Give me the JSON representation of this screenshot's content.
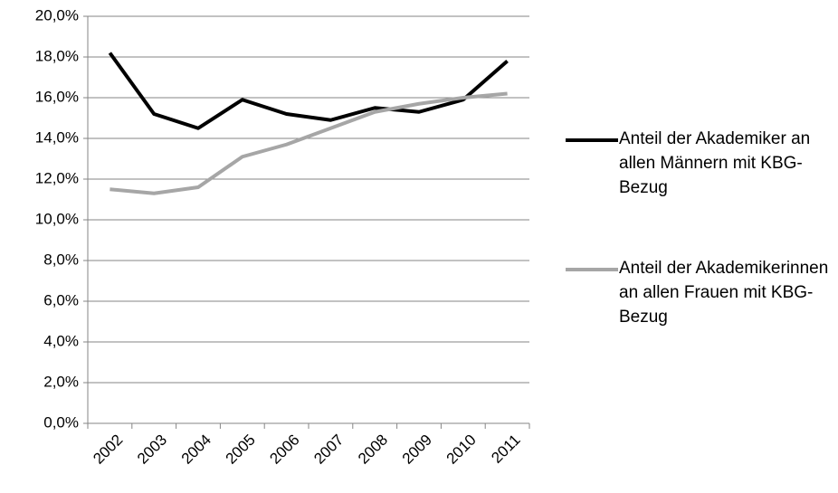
{
  "chart_data": {
    "type": "line",
    "categories": [
      "2002",
      "2003",
      "2004",
      "2005",
      "2006",
      "2007",
      "2008",
      "2009",
      "2010",
      "2011"
    ],
    "series": [
      {
        "name": "Anteil der Akademiker an allen Männern mit KBG-Bezug",
        "color": "#000000",
        "values": [
          18.2,
          15.2,
          14.5,
          15.9,
          15.2,
          14.9,
          15.5,
          15.3,
          15.9,
          17.8
        ]
      },
      {
        "name": "Anteil der Akademikerinnen an allen Frauen mit KBG-Bezug",
        "color": "#a6a6a6",
        "values": [
          11.5,
          11.3,
          11.6,
          13.1,
          13.7,
          14.5,
          15.3,
          15.7,
          16.0,
          16.2
        ]
      }
    ],
    "ylim": [
      0,
      20
    ],
    "yticks": [
      {
        "value": 0,
        "label": "0,0%"
      },
      {
        "value": 2,
        "label": "2,0%"
      },
      {
        "value": 4,
        "label": "4,0%"
      },
      {
        "value": 6,
        "label": "6,0%"
      },
      {
        "value": 8,
        "label": "8,0%"
      },
      {
        "value": 10,
        "label": "10,0%"
      },
      {
        "value": 12,
        "label": "12,0%"
      },
      {
        "value": 14,
        "label": "14,0%"
      },
      {
        "value": 16,
        "label": "16,0%"
      },
      {
        "value": 18,
        "label": "18,0%"
      },
      {
        "value": 20,
        "label": "20,0%"
      }
    ],
    "grid": true,
    "legend": "right"
  }
}
